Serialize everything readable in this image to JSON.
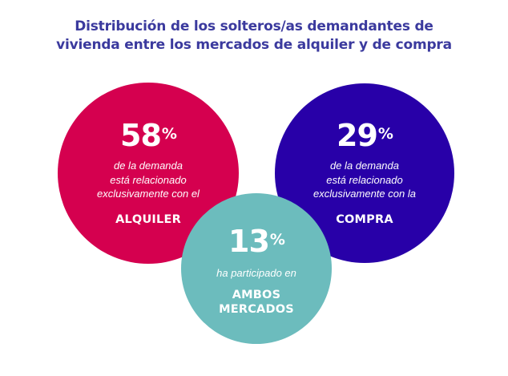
{
  "title": {
    "line1": "Distribución de los solteros/as demandantes de",
    "line2": "vivienda entre los mercados de alquiler y de compra"
  },
  "colors": {
    "title": "#3b3a9e",
    "alquiler": "#d5004f",
    "compra": "#2800a8",
    "ambos": "#6cbcbd",
    "text_on_circle": "#ffffff"
  },
  "circles": {
    "alquiler": {
      "value": "58",
      "percent_sign": "%",
      "desc_line1": "de la demanda",
      "desc_line2": "está relacionado",
      "desc_line3": "exclusivamente con el",
      "label_line1": "ALQUILER"
    },
    "compra": {
      "value": "29",
      "percent_sign": "%",
      "desc_line1": "de la demanda",
      "desc_line2": "está relacionado",
      "desc_line3": "exclusivamente con la",
      "label_line1": "COMPRA"
    },
    "ambos": {
      "value": "13",
      "percent_sign": "%",
      "desc_line1": "ha participado en",
      "label_line1": "AMBOS",
      "label_line2": "MERCADOS"
    }
  },
  "chart_data": {
    "type": "venn",
    "title": "Distribución de los solteros/as demandantes de vivienda entre los mercados de alquiler y de compra",
    "categories": [
      "Alquiler (exclusivo)",
      "Compra (exclusivo)",
      "Ambos mercados"
    ],
    "values": [
      58,
      29,
      13
    ],
    "unit": "%",
    "annotations": [
      "58% de la demanda está relacionado exclusivamente con el ALQUILER",
      "29% de la demanda está relacionado exclusivamente con la COMPRA",
      "13% ha participado en AMBOS MERCADOS"
    ]
  }
}
